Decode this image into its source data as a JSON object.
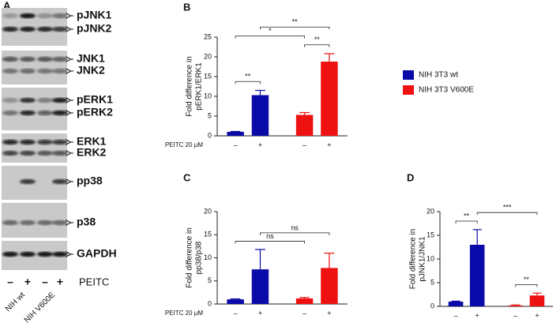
{
  "blot": {
    "panel": "A",
    "rows": [
      {
        "labels": [
          "pJNK1",
          "pJNK2"
        ]
      },
      {
        "labels": [
          "JNK1",
          "JNK2"
        ]
      },
      {
        "labels": [
          "pERK1",
          "pERK2"
        ]
      },
      {
        "labels": [
          "ERK1",
          "ERK2"
        ]
      },
      {
        "labels": [
          "pp38"
        ]
      },
      {
        "labels": [
          "p38"
        ]
      },
      {
        "labels": [
          "GAPDH"
        ]
      }
    ],
    "lanes": [
      "–",
      "+",
      "–",
      "+"
    ],
    "treatment": "PEITC",
    "groups": [
      "NIH wt",
      "NIH V600E"
    ]
  },
  "chart_data": [
    {
      "type": "bar",
      "panel": "B",
      "ylabel": [
        "Fold difference in",
        "pERK1/ERK1"
      ],
      "xprefix": "PEITC 20 µM",
      "categories": [
        "–",
        "+",
        "–",
        "+"
      ],
      "series": [
        {
          "name": "NIH 3T3 wt",
          "color": "#0a0aa8",
          "values": [
            1,
            10.3,
            null,
            null
          ],
          "errors": [
            0.1,
            1.2,
            null,
            null
          ]
        },
        {
          "name": "NIH 3T3 V600E",
          "color": "#ee1111",
          "values": [
            null,
            null,
            5.3,
            18.8
          ],
          "errors": [
            null,
            null,
            0.6,
            2.0
          ]
        }
      ],
      "ylim": [
        0,
        25
      ],
      "yticks": [
        0,
        5,
        10,
        15,
        20,
        25
      ],
      "legend": true,
      "brackets": [
        {
          "from": 0,
          "to": 1,
          "label": "**"
        },
        {
          "from": 2,
          "to": 3,
          "label": "**"
        },
        {
          "from": 0,
          "to": 2,
          "label": "*"
        },
        {
          "from": 1,
          "to": 3,
          "label": "**"
        }
      ]
    },
    {
      "type": "bar",
      "panel": "C",
      "ylabel": [
        "Fold difference in",
        "pp38/p38"
      ],
      "xprefix": "PEITC 20 µM",
      "categories": [
        "–",
        "+",
        "–",
        "+"
      ],
      "series": [
        {
          "color": "#0a0aa8",
          "values": [
            1,
            7.5,
            null,
            null
          ],
          "errors": [
            0.1,
            4.3,
            null,
            null
          ]
        },
        {
          "color": "#ee1111",
          "values": [
            null,
            null,
            1.2,
            7.8
          ],
          "errors": [
            null,
            null,
            0.2,
            3.2
          ]
        }
      ],
      "ylim": [
        0,
        20
      ],
      "yticks": [
        0,
        5,
        10,
        15,
        20
      ],
      "legend": false,
      "brackets": [
        {
          "from": 0,
          "to": 2,
          "label": "ns"
        },
        {
          "from": 1,
          "to": 3,
          "label": "ns"
        }
      ]
    },
    {
      "type": "bar",
      "panel": "D",
      "ylabel": [
        "Fold difference in",
        "pJNK1/JNK1"
      ],
      "categories": [
        "–",
        "+",
        "–",
        "+"
      ],
      "series": [
        {
          "color": "#0a0aa8",
          "values": [
            1,
            13,
            null,
            null
          ],
          "errors": [
            0.1,
            3.2,
            null,
            null
          ]
        },
        {
          "color": "#ee1111",
          "values": [
            null,
            null,
            0.2,
            2.3
          ],
          "errors": [
            null,
            null,
            0.1,
            0.5
          ]
        }
      ],
      "ylim": [
        0,
        20
      ],
      "yticks": [
        0,
        5,
        10,
        15,
        20
      ],
      "legend": false,
      "brackets": [
        {
          "from": 0,
          "to": 1,
          "label": "**"
        },
        {
          "from": 2,
          "to": 3,
          "label": "**"
        },
        {
          "from": 1,
          "to": 3,
          "label": "***"
        }
      ]
    }
  ]
}
